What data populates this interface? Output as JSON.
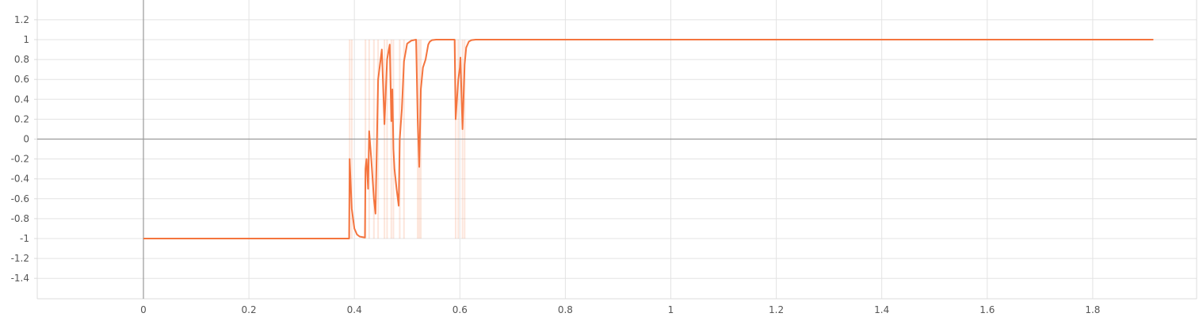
{
  "chart_data": {
    "type": "line",
    "title": "",
    "xlabel": "",
    "ylabel": "",
    "xlim": [
      -0.2,
      1.99
    ],
    "ylim": [
      -1.6,
      1.4
    ],
    "x_ticks": [
      0,
      0.2,
      0.4,
      0.6,
      0.8,
      1,
      1.2,
      1.4,
      1.6,
      1.8
    ],
    "x_tick_labels": [
      "0",
      "0.2",
      "0.4",
      "0.6",
      "0.8",
      "1",
      "1.2",
      "1.4",
      "1.6",
      "1.8"
    ],
    "y_ticks": [
      1.2,
      1,
      0.8,
      0.6,
      0.4,
      0.2,
      0,
      -0.2,
      -0.4,
      -0.6,
      -0.8,
      -1,
      -1.2,
      -1.4
    ],
    "y_tick_labels": [
      "1.2",
      "1",
      "0.8",
      "0.6",
      "0.4",
      "0.2",
      "0",
      "-0.2",
      "-0.4",
      "-0.6",
      "-0.8",
      "-1",
      "-1.2",
      "-1.4"
    ],
    "grid": true,
    "color": "#f4743e",
    "series": [
      {
        "name": "",
        "x": [
          0,
          0.39,
          0.391,
          0.395,
          0.4,
          0.405,
          0.41,
          0.42,
          0.421,
          0.423,
          0.426,
          0.428,
          0.432,
          0.437,
          0.44,
          0.445,
          0.452,
          0.457,
          0.462,
          0.467,
          0.47,
          0.472,
          0.474,
          0.476,
          0.48,
          0.484,
          0.486,
          0.49,
          0.494,
          0.5,
          0.508,
          0.517,
          0.52,
          0.523,
          0.526,
          0.53,
          0.535,
          0.54,
          0.543,
          0.547,
          0.555,
          0.57,
          0.59,
          0.592,
          0.597,
          0.6,
          0.601,
          0.605,
          0.609,
          0.612,
          0.617,
          0.622,
          0.63,
          0.65,
          1.915
        ],
        "y": [
          -1,
          -1,
          -0.2,
          -0.7,
          -0.9,
          -0.96,
          -0.98,
          -0.99,
          -0.3,
          -0.2,
          -0.5,
          0.08,
          -0.2,
          -0.6,
          -0.75,
          0.6,
          0.9,
          0.15,
          0.8,
          0.95,
          0.18,
          0.5,
          -0.1,
          -0.3,
          -0.5,
          -0.67,
          0.0,
          0.3,
          0.78,
          0.96,
          0.99,
          1.0,
          0.2,
          -0.28,
          0.5,
          0.72,
          0.8,
          0.95,
          0.98,
          0.995,
          1.0,
          1.0,
          1.0,
          0.2,
          0.6,
          0.72,
          0.82,
          0.1,
          0.75,
          0.92,
          0.98,
          0.995,
          1.0,
          1.0,
          1.0
        ]
      }
    ]
  }
}
